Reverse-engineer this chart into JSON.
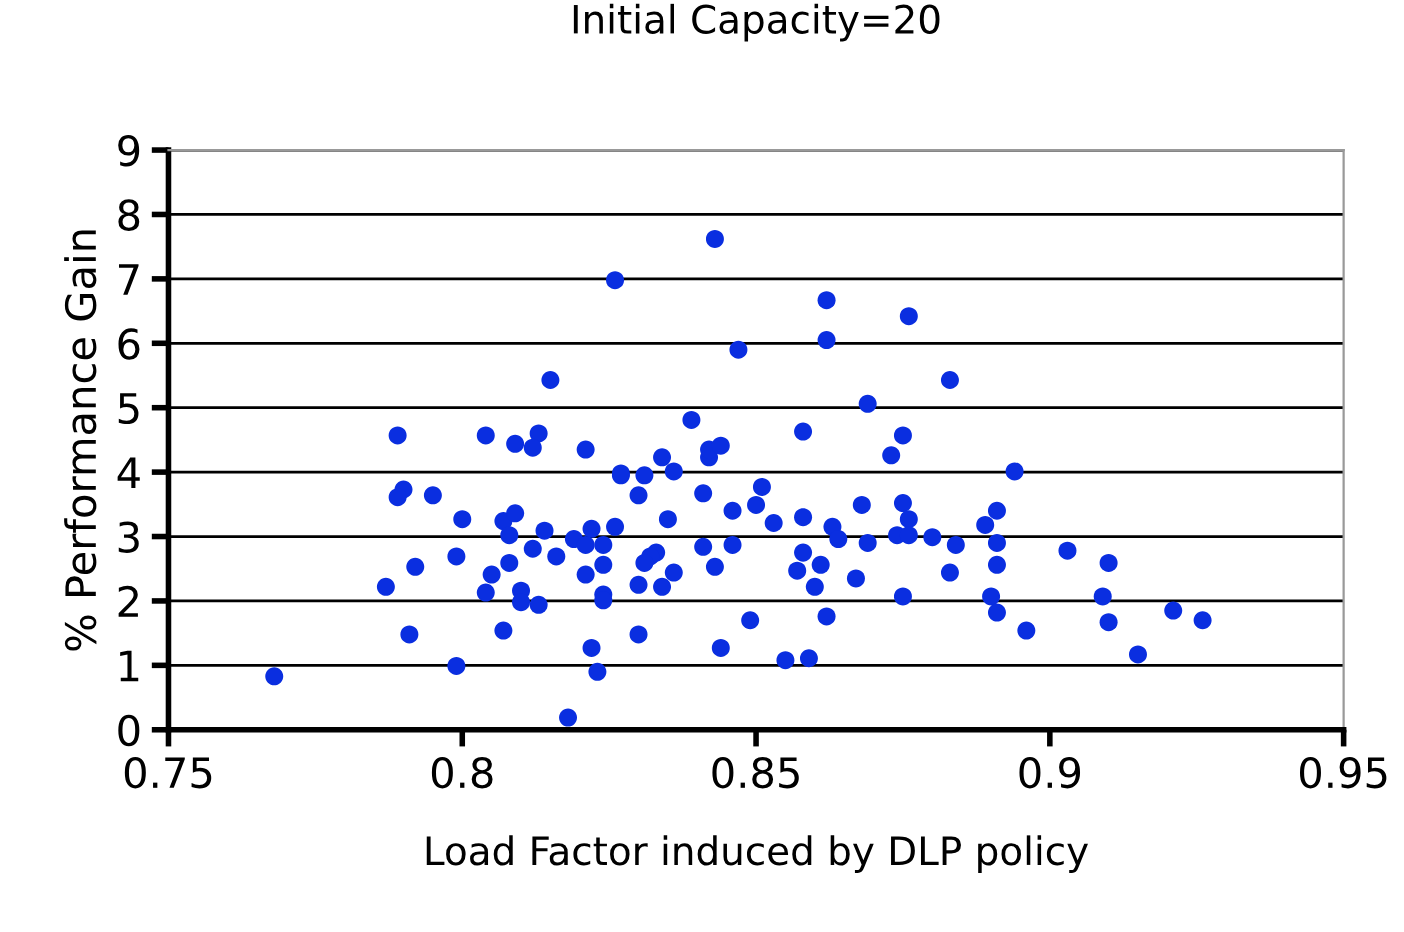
{
  "chart_data": {
    "type": "scatter",
    "title": "Initial Capacity=20",
    "xlabel": "Load Factor induced by DLP policy",
    "ylabel": "% Performance Gain",
    "xlim": [
      0.75,
      0.95
    ],
    "xticks": [
      {
        "value": 0.75,
        "label": "0.75"
      },
      {
        "value": 0.8,
        "label": "0.8"
      },
      {
        "value": 0.85,
        "label": "0.85"
      },
      {
        "value": 0.9,
        "label": "0.9"
      },
      {
        "value": 0.95,
        "label": "0.95"
      }
    ],
    "ylim": [
      0,
      9
    ],
    "yticks": [
      0,
      1,
      2,
      3,
      4,
      5,
      6,
      7,
      8,
      9
    ],
    "grid": "y",
    "marker": "circle",
    "legend": false,
    "series": [
      {
        "color": "#0a2ee0",
        "x": [
          0.789,
          0.804,
          0.809,
          0.813,
          0.812,
          0.815,
          0.79,
          0.789,
          0.795,
          0.8,
          0.807,
          0.809,
          0.808,
          0.814,
          0.799,
          0.792,
          0.808,
          0.812,
          0.816,
          0.805,
          0.787,
          0.804,
          0.81,
          0.81,
          0.813,
          0.791,
          0.807,
          0.799,
          0.768,
          0.818,
          0.819,
          0.821,
          0.822,
          0.824,
          0.826,
          0.824,
          0.821,
          0.824,
          0.824,
          0.822,
          0.823,
          0.821,
          0.826,
          0.827,
          0.827,
          0.83,
          0.831,
          0.834,
          0.836,
          0.835,
          0.833,
          0.832,
          0.831,
          0.83,
          0.834,
          0.836,
          0.83,
          0.839,
          0.843,
          0.842,
          0.842,
          0.844,
          0.841,
          0.841,
          0.843,
          0.846,
          0.846,
          0.847,
          0.849,
          0.844,
          0.85,
          0.851,
          0.853,
          0.858,
          0.858,
          0.858,
          0.857,
          0.861,
          0.86,
          0.855,
          0.859,
          0.862,
          0.862,
          0.862,
          0.863,
          0.864,
          0.869,
          0.868,
          0.869,
          0.867,
          0.873,
          0.875,
          0.876,
          0.875,
          0.876,
          0.874,
          0.876,
          0.88,
          0.875,
          0.883,
          0.894,
          0.891,
          0.889,
          0.884,
          0.891,
          0.883,
          0.891,
          0.903,
          0.91,
          0.89,
          0.891,
          0.896,
          0.909,
          0.91,
          0.915,
          0.921,
          0.926
        ],
        "values": [
          4.57,
          4.57,
          4.44,
          4.6,
          4.38,
          5.43,
          3.73,
          3.61,
          3.64,
          3.27,
          3.24,
          3.36,
          3.02,
          3.09,
          2.69,
          2.53,
          2.59,
          2.81,
          2.69,
          2.41,
          2.22,
          2.13,
          2.16,
          1.98,
          1.94,
          1.48,
          1.54,
          0.99,
          0.83,
          0.19,
          2.96,
          2.87,
          3.12,
          2.87,
          3.15,
          2.56,
          2.41,
          2.1,
          2.01,
          1.27,
          0.9,
          4.35,
          6.98,
          3.95,
          3.98,
          3.64,
          3.95,
          4.23,
          4.01,
          3.27,
          2.75,
          2.69,
          2.59,
          2.25,
          2.22,
          2.44,
          1.48,
          4.81,
          7.62,
          4.23,
          4.35,
          4.41,
          3.67,
          2.84,
          2.53,
          3.4,
          2.87,
          5.9,
          1.7,
          1.27,
          3.49,
          3.77,
          3.21,
          4.63,
          3.3,
          2.75,
          2.47,
          2.56,
          2.22,
          1.08,
          1.11,
          6.67,
          6.05,
          1.76,
          3.15,
          2.96,
          5.06,
          3.49,
          2.9,
          2.35,
          4.26,
          4.57,
          6.42,
          3.52,
          3.27,
          3.02,
          3.02,
          2.99,
          2.07,
          5.43,
          4.01,
          3.4,
          3.18,
          2.87,
          2.9,
          2.44,
          2.56,
          2.78,
          2.59,
          2.07,
          1.82,
          1.54,
          2.07,
          1.67,
          1.17,
          1.85,
          1.7
        ]
      }
    ]
  }
}
